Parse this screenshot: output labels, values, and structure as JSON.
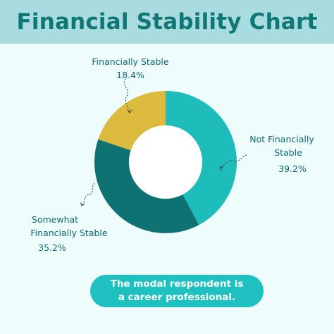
{
  "title": "Financial Stability Chart",
  "chart_data": {
    "type": "pie",
    "title": "Financial Stability Chart",
    "categories": [
      "Not Financially Stable",
      "Somewhat Financially Stable",
      "Financially Stable"
    ],
    "values": [
      39.2,
      35.2,
      18.4
    ],
    "value_labels": [
      "39.2%",
      "35.2%",
      "18.4%"
    ],
    "colors": [
      "#1fbcbc",
      "#0f7272",
      "#dbba3e"
    ],
    "donut": true
  },
  "labels": {
    "not_stable": {
      "name_line1": "Not Financially",
      "name_line2": "Stable",
      "pct": "39.2%"
    },
    "somewhat": {
      "name_line1": "Somewhat",
      "name_line2": "Financially Stable",
      "pct": "35.2%"
    },
    "stable": {
      "name_line1": "Financially Stable",
      "pct": "18.4%"
    }
  },
  "note": "The modal respondent is a career professional.",
  "colors": {
    "header_bg": "#a8dcdf",
    "title": "#107777",
    "background": "#eefcfc",
    "note_bg": "#1fc1c0"
  }
}
